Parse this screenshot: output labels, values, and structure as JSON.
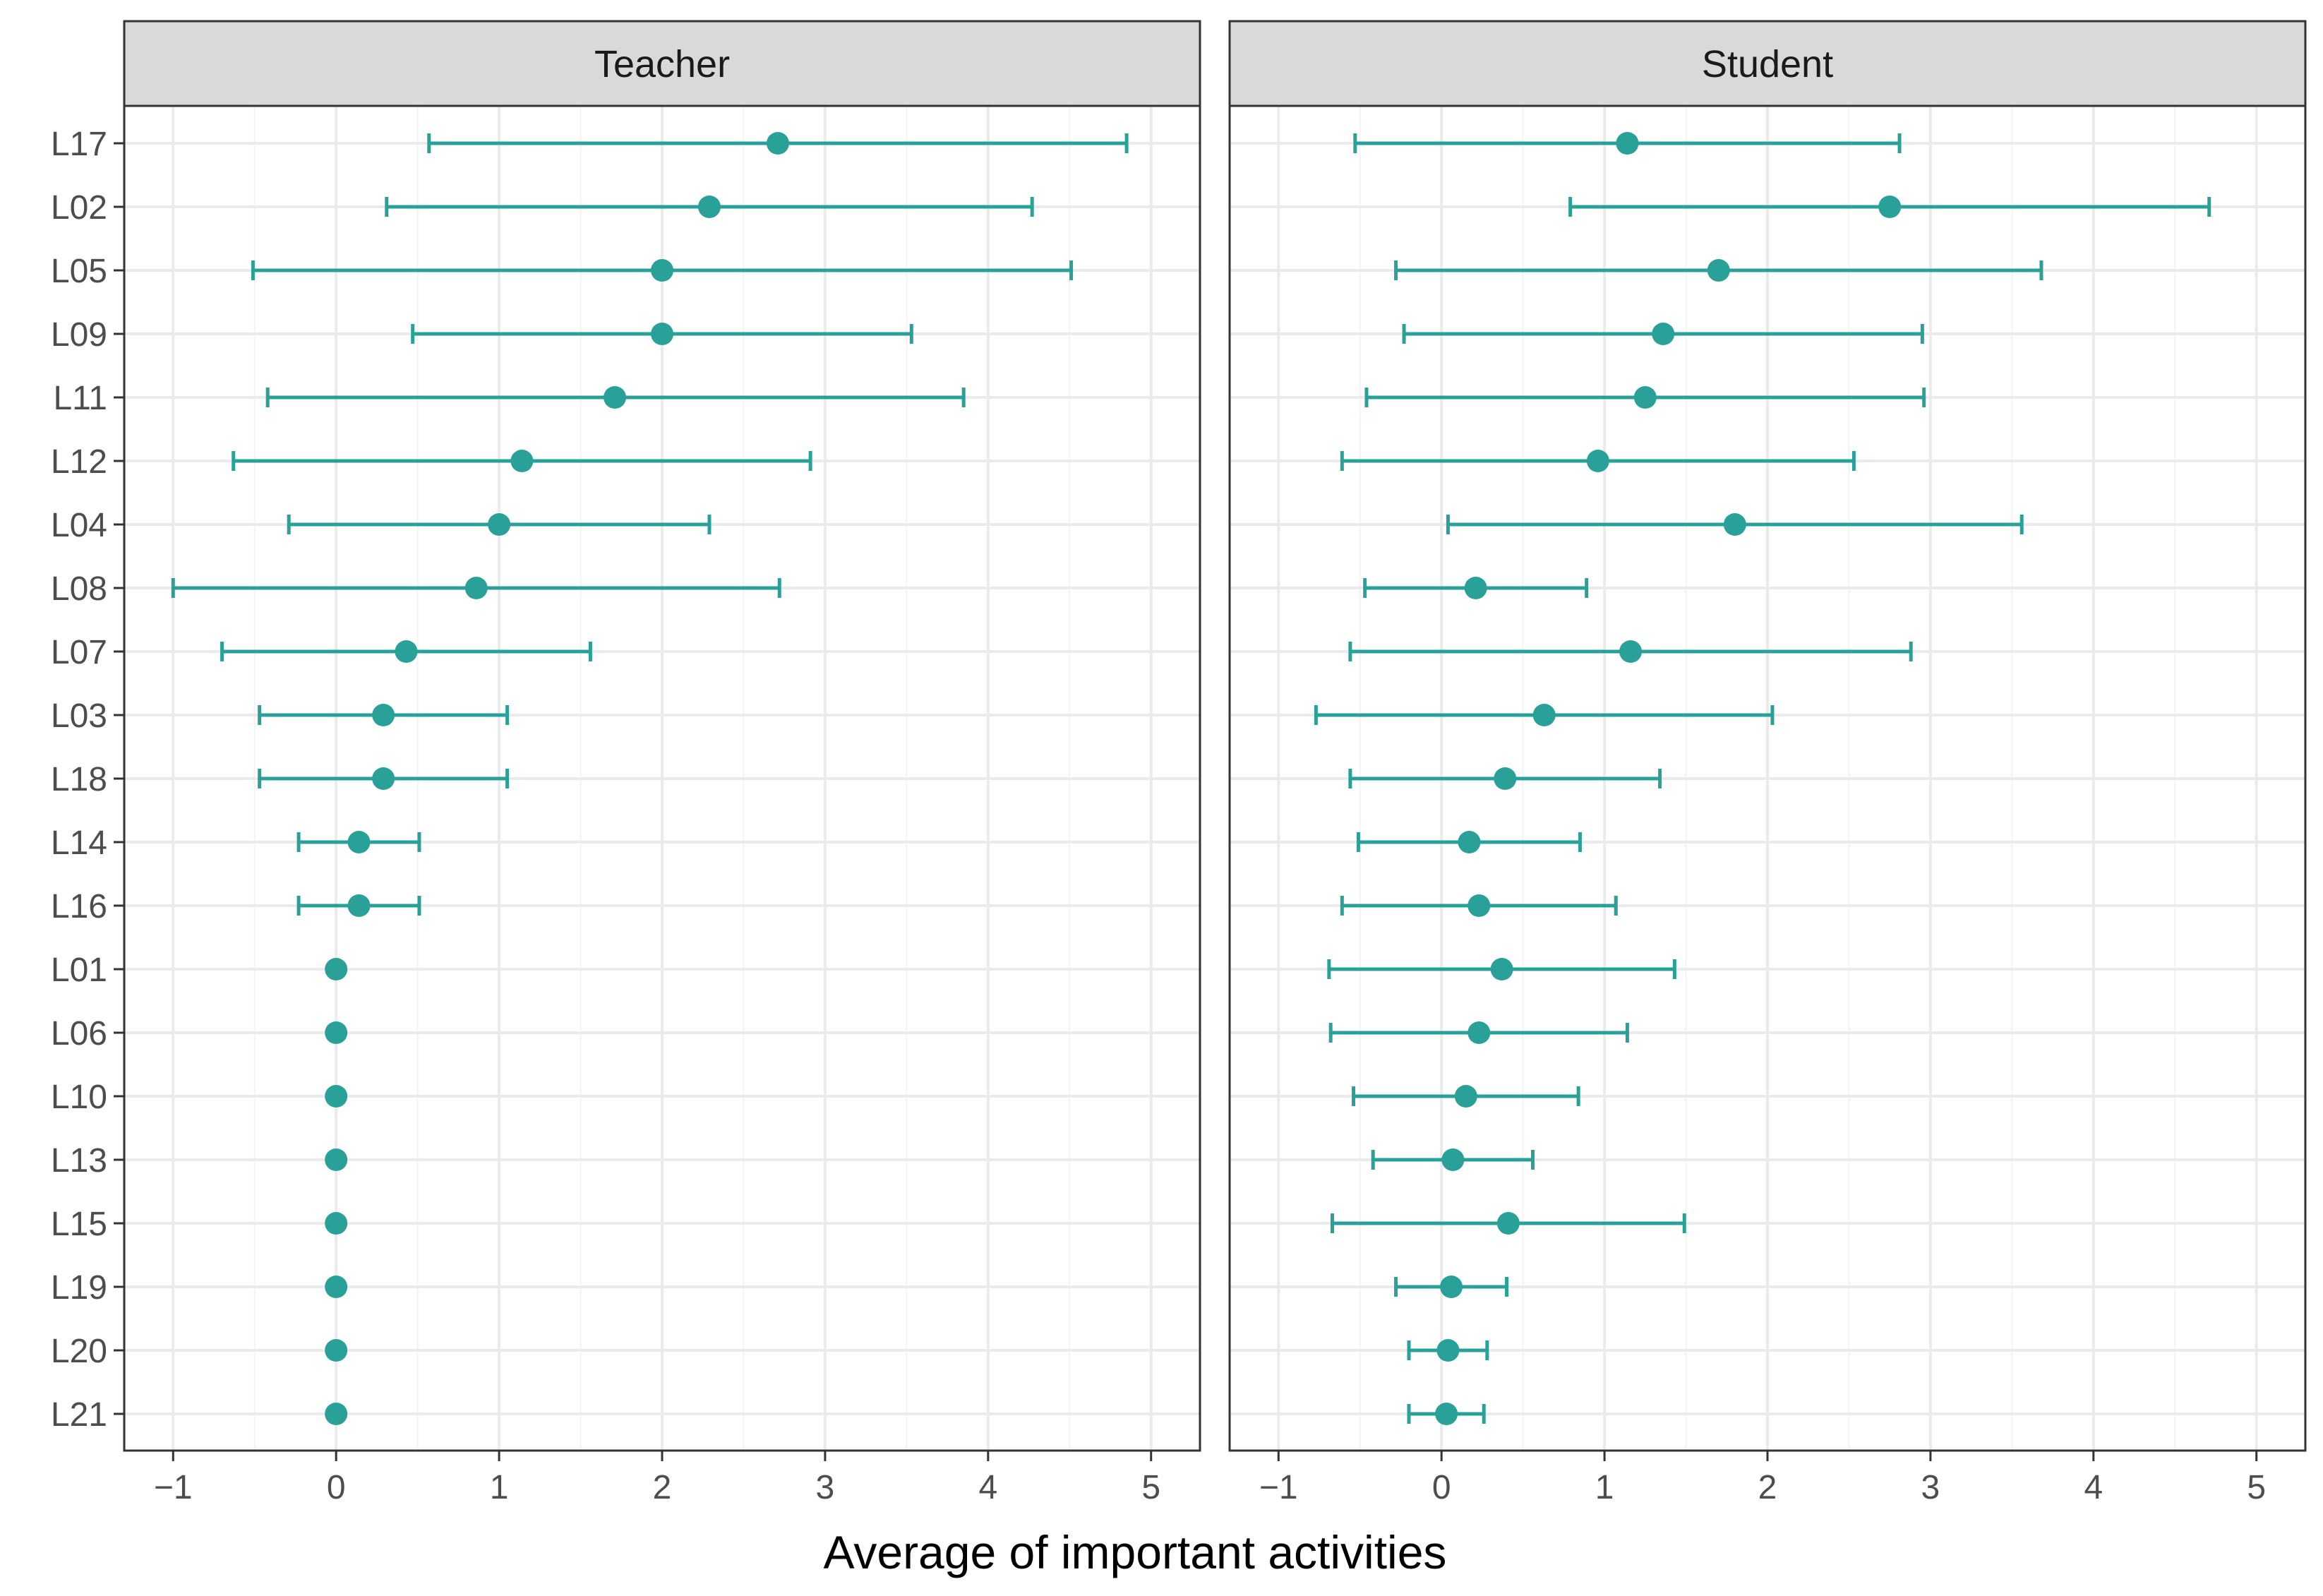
{
  "colors": {
    "point": "#26a1a1",
    "grid": "#ebebeb",
    "strip": "#d9d9d9",
    "border": "#333333"
  },
  "chart_data": {
    "type": "scatter",
    "subtype": "dot-with-error-bars",
    "xlabel": "Average of important activities",
    "ylabel": "",
    "xlim": [
      -1.3,
      5.3
    ],
    "x_ticks": [
      -1,
      0,
      1,
      2,
      3,
      4,
      5
    ],
    "x_tick_labels": [
      "−1",
      "0",
      "1",
      "2",
      "3",
      "4",
      "5"
    ],
    "categories": [
      "L17",
      "L02",
      "L05",
      "L09",
      "L11",
      "L12",
      "L04",
      "L08",
      "L07",
      "L03",
      "L18",
      "L14",
      "L16",
      "L01",
      "L06",
      "L10",
      "L13",
      "L15",
      "L19",
      "L20",
      "L21"
    ],
    "panels": [
      {
        "title": "Teacher",
        "mean": [
          2.71,
          2.29,
          2.0,
          2.0,
          1.71,
          1.14,
          1.0,
          0.86,
          0.43,
          0.29,
          0.29,
          0.14,
          0.14,
          0,
          0,
          0,
          0,
          0,
          0,
          0,
          0
        ],
        "lower": [
          0.57,
          0.31,
          -0.51,
          0.47,
          -0.42,
          -0.63,
          -0.29,
          -1.0,
          -0.7,
          -0.47,
          -0.47,
          -0.23,
          -0.23,
          0,
          0,
          0,
          0,
          0,
          0,
          0,
          0
        ],
        "upper": [
          4.85,
          4.27,
          4.51,
          3.53,
          3.85,
          2.91,
          2.29,
          2.72,
          1.56,
          1.05,
          1.05,
          0.51,
          0.51,
          0,
          0,
          0,
          0,
          0,
          0,
          0,
          0
        ]
      },
      {
        "title": "Student",
        "mean": [
          1.14,
          2.75,
          1.7,
          1.36,
          1.25,
          0.96,
          1.8,
          0.21,
          1.16,
          0.63,
          0.39,
          0.17,
          0.23,
          0.37,
          0.23,
          0.15,
          0.07,
          0.41,
          0.06,
          0.04,
          0.03
        ],
        "lower": [
          -0.53,
          0.79,
          -0.28,
          -0.23,
          -0.46,
          -0.61,
          0.04,
          -0.47,
          -0.56,
          -0.77,
          -0.56,
          -0.51,
          -0.61,
          -0.69,
          -0.68,
          -0.54,
          -0.42,
          -0.67,
          -0.28,
          -0.2,
          -0.2
        ],
        "upper": [
          2.81,
          4.71,
          3.68,
          2.95,
          2.96,
          2.53,
          3.56,
          0.89,
          2.88,
          2.03,
          1.34,
          0.85,
          1.07,
          1.43,
          1.14,
          0.84,
          0.56,
          1.49,
          0.4,
          0.28,
          0.26
        ]
      }
    ]
  }
}
